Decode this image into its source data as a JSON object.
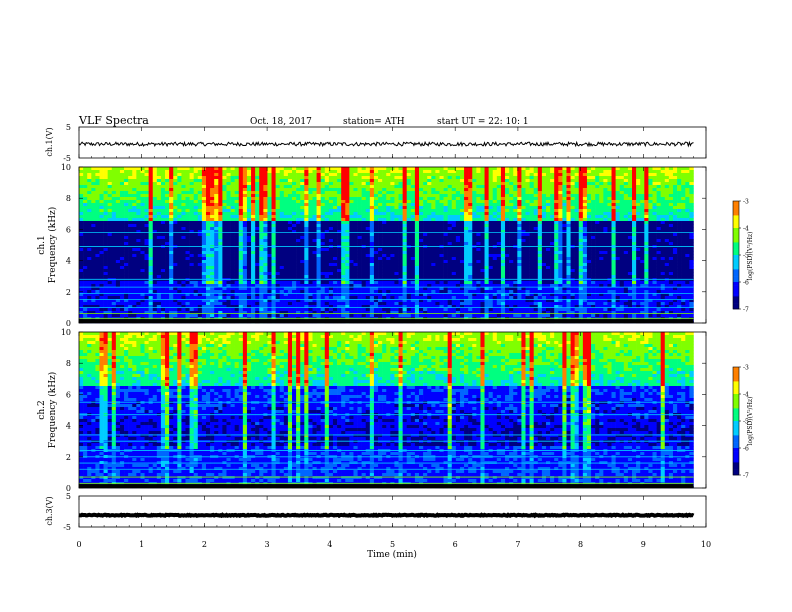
{
  "header": {
    "title": "VLF  Spectra",
    "date": "Oct. 18, 2017",
    "station": "station= ATH",
    "start": "start  UT  =    22: 10: 1"
  },
  "chart_data": [
    {
      "type": "line",
      "panel": "ch1_waveform",
      "ylabel": "ch.1(V)",
      "yticks": [
        "5",
        "-5"
      ],
      "ylim": [
        -5,
        5
      ],
      "xlim": [
        0,
        10
      ],
      "series": [
        {
          "x_range": [
            0,
            9.8
          ],
          "mean_value": -0.5,
          "noise_amplitude": 0.6
        }
      ]
    },
    {
      "type": "heatmap",
      "panel": "ch1_spectrogram",
      "ylabel": "ch.1\nFrequency  (kHz)",
      "ylabel_line1": "ch.1",
      "ylabel_line2": "Frequency  (kHz)",
      "yticks": [
        "0",
        "2",
        "4",
        "6",
        "8",
        "10"
      ],
      "ylim": [
        0,
        10
      ],
      "xlim": [
        0,
        10
      ],
      "data_x_range": [
        0,
        9.8
      ],
      "colorbar": {
        "label": "log(PSD)(V²/Hz)",
        "ticks": [
          "-3",
          "-4",
          "-5",
          "-6",
          "-7"
        ],
        "range": [
          -7,
          -3
        ]
      }
    },
    {
      "type": "heatmap",
      "panel": "ch2_spectrogram",
      "ylabel": "ch.2\nFrequency  (kHz)",
      "ylabel_line1": "ch.2",
      "ylabel_line2": "Frequency  (kHz)",
      "yticks": [
        "0",
        "2",
        "4",
        "6",
        "8",
        "10"
      ],
      "ylim": [
        0,
        10
      ],
      "xlim": [
        0,
        10
      ],
      "data_x_range": [
        0,
        9.8
      ],
      "colorbar": {
        "label": "log(PSD)(V²/Hz)",
        "ticks": [
          "-3",
          "-4",
          "-5",
          "-6",
          "-7"
        ],
        "range": [
          -7,
          -3
        ]
      }
    },
    {
      "type": "line",
      "panel": "ch3_waveform",
      "ylabel": "ch.3(V)",
      "yticks": [
        "5",
        "-5"
      ],
      "ylim": [
        -5,
        5
      ],
      "xlim": [
        0,
        10
      ],
      "series": [
        {
          "x_range": [
            0,
            9.8
          ],
          "mean_value": -1.2,
          "noise_amplitude": 0.15
        }
      ]
    }
  ],
  "xaxis": {
    "label": "Time  (min)",
    "ticks": [
      "0",
      "1",
      "2",
      "3",
      "4",
      "5",
      "6",
      "7",
      "8",
      "9",
      "10"
    ]
  },
  "colormap": [
    "#000080",
    "#0000ff",
    "#0066ff",
    "#00ccff",
    "#00ff80",
    "#80ff00",
    "#ffff00",
    "#ff8000",
    "#ff0000",
    "#ffffff"
  ]
}
